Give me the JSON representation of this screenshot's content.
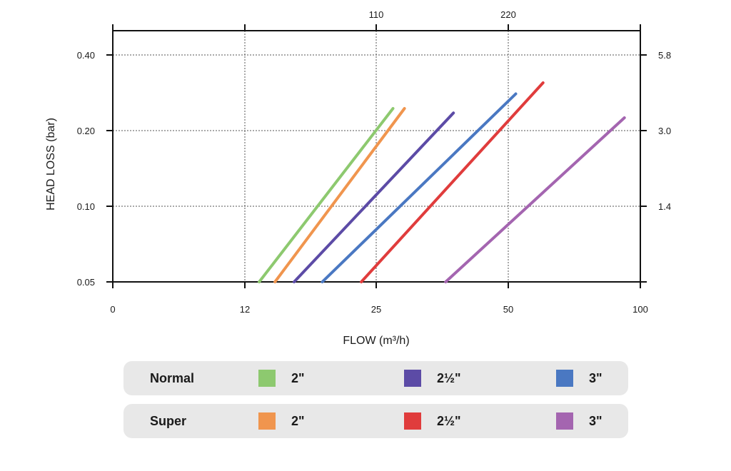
{
  "chart_data": {
    "type": "line",
    "title": "",
    "xlabel": "FLOW (m³/h)",
    "ylabel": "HEAD LOSS (bar)",
    "x_scale": "log",
    "y_scale": "log",
    "x_ticks": [
      "0",
      "12",
      "25",
      "50",
      "100"
    ],
    "y_ticks": [
      "0.05",
      "0.10",
      "0.20",
      "0.40"
    ],
    "top_axis_ticks": [
      "110",
      "220"
    ],
    "right_axis_ticks": [
      "1.4",
      "3.0",
      "5.8"
    ],
    "grid": true,
    "series": [
      {
        "name": "Normal 2\"",
        "color": "#8dc96f",
        "points": [
          [
            13.0,
            0.05
          ],
          [
            27.3,
            0.245
          ]
        ]
      },
      {
        "name": "Super 2\"",
        "color": "#f0954e",
        "points": [
          [
            14.2,
            0.05
          ],
          [
            29.0,
            0.245
          ]
        ]
      },
      {
        "name": "Normal 2½\"",
        "color": "#5c4ba6",
        "points": [
          [
            15.8,
            0.05
          ],
          [
            37.5,
            0.235
          ]
        ]
      },
      {
        "name": "Normal 3\"",
        "color": "#4a78c2",
        "points": [
          [
            18.5,
            0.05
          ],
          [
            52.0,
            0.28
          ]
        ]
      },
      {
        "name": "Super 2½\"",
        "color": "#e03c3c",
        "points": [
          [
            23.0,
            0.05
          ],
          [
            60.0,
            0.31
          ]
        ]
      },
      {
        "name": "Super 3\"",
        "color": "#a465b0",
        "points": [
          [
            36.0,
            0.05
          ],
          [
            92.0,
            0.225
          ]
        ]
      }
    ]
  },
  "legend": {
    "rows": [
      {
        "name": "Normal",
        "items": [
          {
            "label": "2\"",
            "color": "#8dc96f"
          },
          {
            "label": "2½\"",
            "color": "#5c4ba6"
          },
          {
            "label": "3\"",
            "color": "#4a78c2"
          }
        ]
      },
      {
        "name": "Super",
        "items": [
          {
            "label": "2\"",
            "color": "#f0954e"
          },
          {
            "label": "2½\"",
            "color": "#e03c3c"
          },
          {
            "label": "3\"",
            "color": "#a465b0"
          }
        ]
      }
    ]
  }
}
